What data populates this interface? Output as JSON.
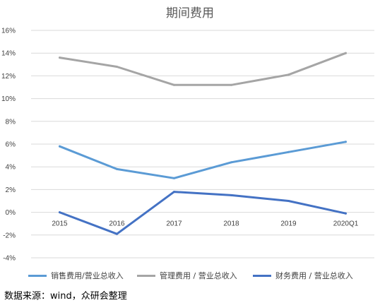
{
  "chart_data": {
    "type": "line",
    "title": "期间费用",
    "categories": [
      "2015",
      "2016",
      "2017",
      "2018",
      "2019",
      "2020Q1"
    ],
    "ylim": [
      -4,
      16
    ],
    "yticks": [
      16,
      14,
      12,
      10,
      8,
      6,
      4,
      2,
      0,
      -2,
      -4
    ],
    "ytick_suffix": "%",
    "grid": true,
    "legend_position": "bottom",
    "series": [
      {
        "name": "销售费用/营业总收入",
        "color": "#5b9bd5",
        "values": [
          5.8,
          3.8,
          3.0,
          4.4,
          5.3,
          6.2
        ]
      },
      {
        "name": "管理费用 / 营业总收入",
        "color": "#a5a5a5",
        "values": [
          13.6,
          12.8,
          11.2,
          11.2,
          12.1,
          14.0
        ]
      },
      {
        "name": "财务费用 / 营业总收入",
        "color": "#4472c4",
        "values": [
          0.0,
          -1.9,
          1.8,
          1.5,
          1.0,
          -0.1
        ]
      }
    ]
  },
  "source": "数据来源：wind，众研会整理"
}
